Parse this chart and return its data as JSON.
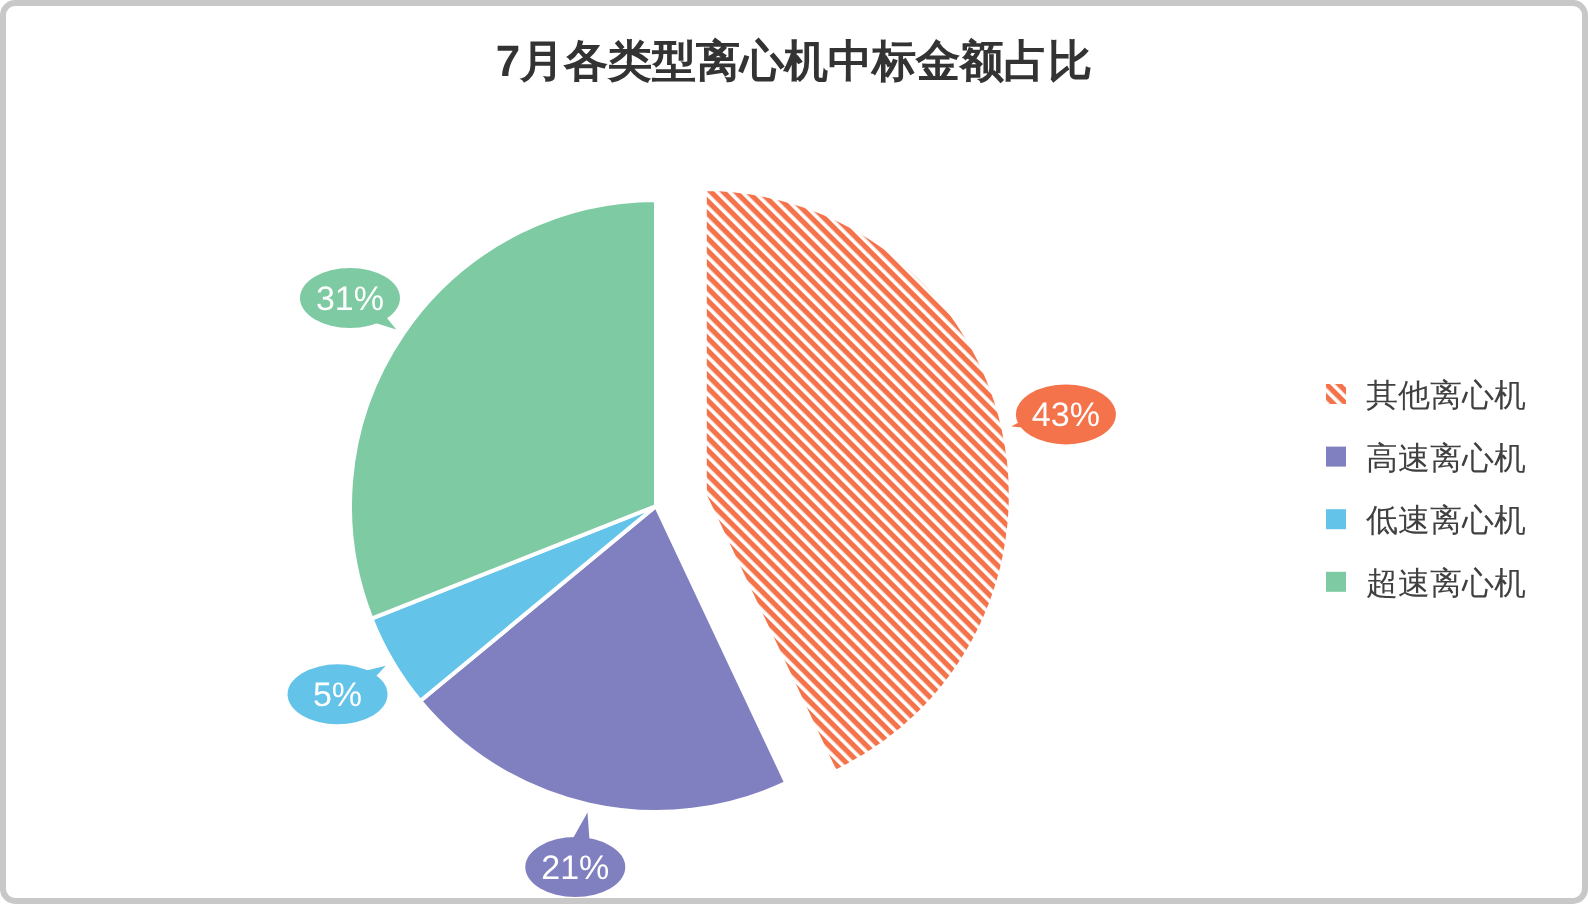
{
  "chart_data": {
    "type": "pie",
    "title": "7月各类型离心机中标金额占比",
    "categories": [
      "其他离心机",
      "高速离心机",
      "低速离心机",
      "超速离心机"
    ],
    "values": [
      43,
      21,
      5,
      31
    ],
    "colors": [
      "#f4734a",
      "#8080c0",
      "#63c3e8",
      "#7ecaa3"
    ],
    "value_labels": [
      "43%",
      "21%",
      "5%",
      "31%"
    ],
    "legend": "right"
  }
}
